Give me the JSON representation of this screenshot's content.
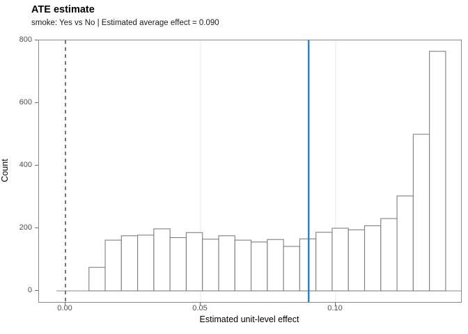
{
  "chart_data": {
    "type": "bar",
    "subtype": "histogram",
    "title": "ATE estimate",
    "subtitle": "smoke: Yes vs No | Estimated average effect = 0.090",
    "xlabel": "Estimated unit-level effect",
    "ylabel": "Count",
    "xlim": [
      -0.0098,
      0.1464
    ],
    "ylim": [
      -36,
      800
    ],
    "grid": "vertical-major-only",
    "x_axis": {
      "ticks": [
        {
          "value": 0.0,
          "label": "0.00"
        },
        {
          "value": 0.05,
          "label": "0.05"
        },
        {
          "value": 0.1,
          "label": "0.10"
        }
      ]
    },
    "y_axis": {
      "ticks": [
        {
          "value": 0,
          "label": "0"
        },
        {
          "value": 200,
          "label": "200"
        },
        {
          "value": 400,
          "label": "400"
        },
        {
          "value": 600,
          "label": "600"
        },
        {
          "value": 800,
          "label": "800"
        }
      ]
    },
    "histogram": {
      "bin_start": 0.0087,
      "bin_width": 0.006,
      "counts": [
        75,
        162,
        176,
        178,
        198,
        170,
        186,
        165,
        176,
        162,
        156,
        164,
        142,
        166,
        187,
        200,
        195,
        208,
        231,
        303,
        500,
        765
      ]
    },
    "reference_lines": [
      {
        "name": "zero-line",
        "x": 0.0,
        "style": "dashed"
      },
      {
        "name": "ate-line",
        "x": 0.09,
        "style": "solid"
      }
    ],
    "baseline_y": 0,
    "colors": {
      "bar_fill": "#ffffff",
      "bar_stroke": "#7d7d7d",
      "dashed_line": "#555555",
      "ate_line": "#3182bd",
      "gridline": "#e8e8e8",
      "baseline": "#8a8a8a",
      "tick_text": "#4d4d4d"
    }
  }
}
